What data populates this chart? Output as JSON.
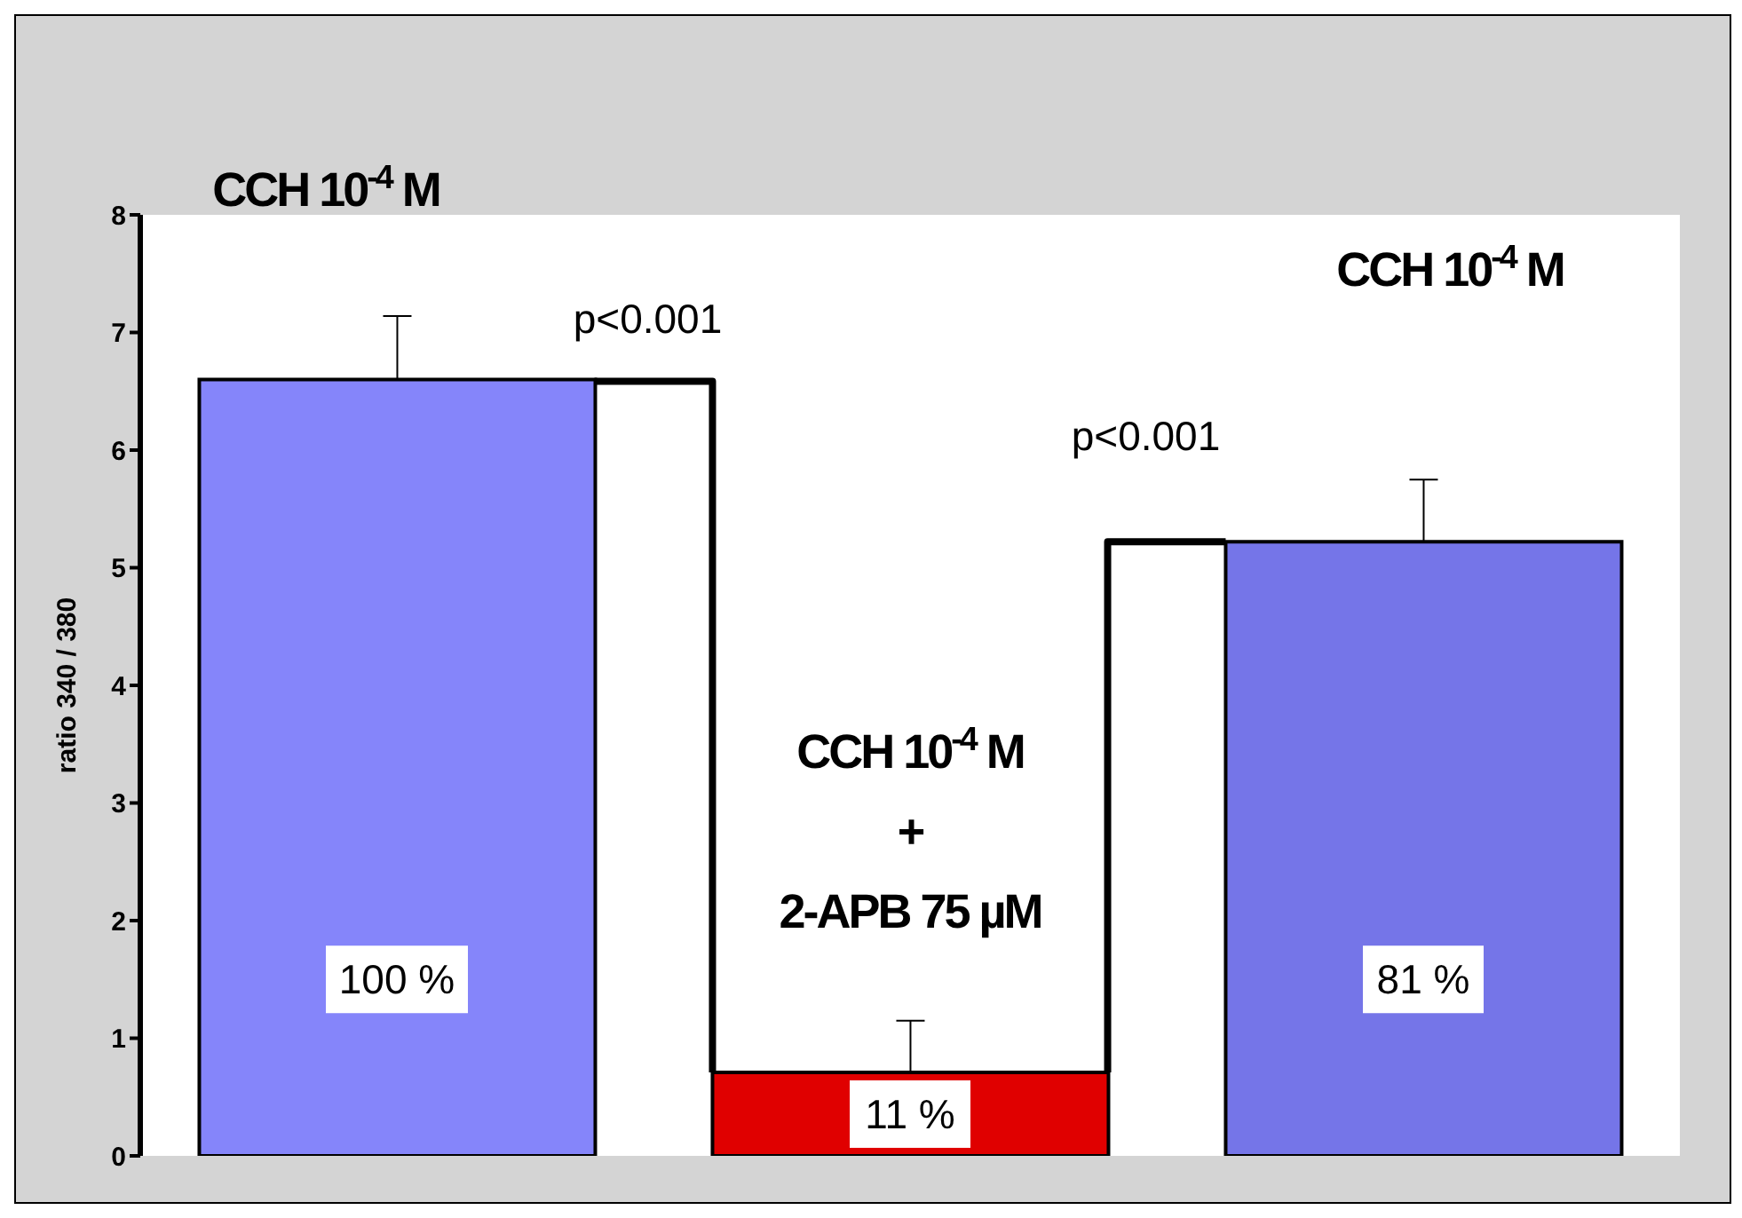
{
  "chart_data": {
    "type": "bar",
    "ylabel": "ratio 340 / 380",
    "categories": [
      "CCH 10$^{-4}$ M",
      "CCH 10$^{-4}$ M\n+\n2-APB 75 µM",
      "CCH 10$^{-4}$ M"
    ],
    "values": [
      6.6,
      0.71,
      5.22
    ],
    "colors": [
      "#8585fa",
      "#e00000",
      "#7575e8"
    ],
    "errors": [
      [
        6.6,
        7.14
      ],
      [
        0.71,
        1.15
      ],
      [
        5.22,
        5.75
      ]
    ],
    "annotations": [
      "p<0.001",
      "p<0.001",
      "100 %",
      "11 %",
      "81 %"
    ],
    "ylim": [
      0,
      8
    ],
    "yticks": [
      0,
      1,
      2,
      3,
      4,
      5,
      6,
      7,
      8
    ],
    "grid": false,
    "legend": false
  }
}
